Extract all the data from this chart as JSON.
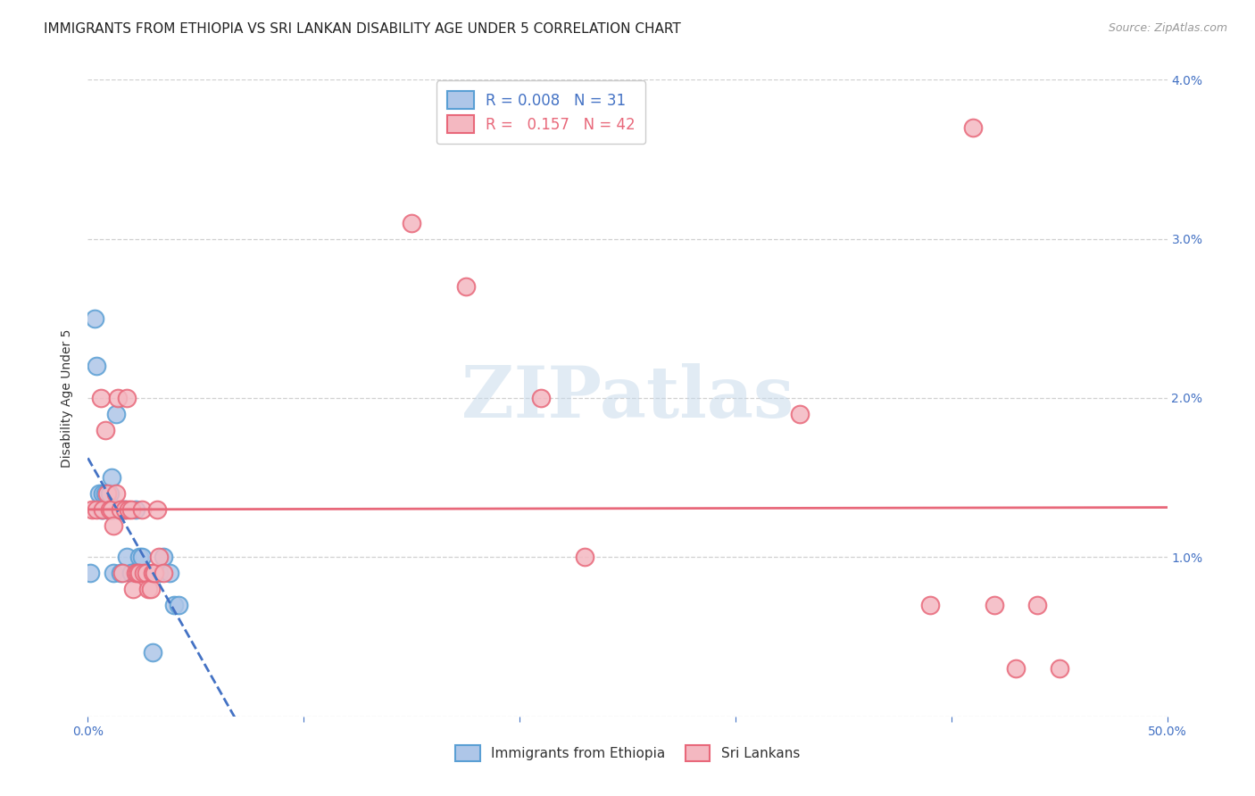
{
  "title": "IMMIGRANTS FROM ETHIOPIA VS SRI LANKAN DISABILITY AGE UNDER 5 CORRELATION CHART",
  "source": "Source: ZipAtlas.com",
  "ylabel": "Disability Age Under 5",
  "xlim": [
    0,
    0.5
  ],
  "ylim": [
    0,
    0.04
  ],
  "yticks": [
    0.0,
    0.01,
    0.02,
    0.03,
    0.04
  ],
  "yticklabels_right": [
    "",
    "1.0%",
    "2.0%",
    "3.0%",
    "4.0%"
  ],
  "ethiopia_color": "#aec6e8",
  "srilanka_color": "#f4b8c1",
  "ethiopia_edge": "#5a9fd4",
  "srilanka_edge": "#e8687a",
  "ethiopia_line_color": "#4472c4",
  "srilanka_line_color": "#e8687a",
  "legend_R_ethiopia": "0.008",
  "legend_N_ethiopia": "31",
  "legend_R_srilanka": "0.157",
  "legend_N_srilanka": "42",
  "background_color": "#ffffff",
  "grid_color": "#d0d0d0",
  "tick_color": "#4472c4",
  "title_fontsize": 11,
  "axis_label_fontsize": 10,
  "tick_fontsize": 10,
  "ethiopia_x": [
    0.001,
    0.003,
    0.004,
    0.005,
    0.006,
    0.007,
    0.007,
    0.008,
    0.009,
    0.01,
    0.01,
    0.011,
    0.012,
    0.012,
    0.013,
    0.014,
    0.015,
    0.016,
    0.017,
    0.018,
    0.02,
    0.022,
    0.024,
    0.025,
    0.028,
    0.03,
    0.033,
    0.035,
    0.038,
    0.04,
    0.042
  ],
  "ethiopia_y": [
    0.009,
    0.025,
    0.022,
    0.014,
    0.013,
    0.014,
    0.013,
    0.014,
    0.013,
    0.013,
    0.014,
    0.015,
    0.013,
    0.009,
    0.019,
    0.013,
    0.009,
    0.013,
    0.013,
    0.01,
    0.009,
    0.013,
    0.01,
    0.01,
    0.009,
    0.004,
    0.009,
    0.01,
    0.009,
    0.007,
    0.007
  ],
  "srilanka_x": [
    0.002,
    0.004,
    0.006,
    0.007,
    0.008,
    0.009,
    0.01,
    0.011,
    0.012,
    0.013,
    0.014,
    0.015,
    0.016,
    0.017,
    0.018,
    0.019,
    0.02,
    0.021,
    0.022,
    0.023,
    0.024,
    0.025,
    0.026,
    0.027,
    0.028,
    0.029,
    0.03,
    0.031,
    0.032,
    0.033,
    0.035,
    0.15,
    0.175,
    0.21,
    0.23,
    0.33,
    0.39,
    0.41,
    0.42,
    0.43,
    0.44,
    0.45
  ],
  "srilanka_y": [
    0.013,
    0.013,
    0.02,
    0.013,
    0.018,
    0.014,
    0.013,
    0.013,
    0.012,
    0.014,
    0.02,
    0.013,
    0.009,
    0.013,
    0.02,
    0.013,
    0.013,
    0.008,
    0.009,
    0.009,
    0.009,
    0.013,
    0.009,
    0.009,
    0.008,
    0.008,
    0.009,
    0.009,
    0.013,
    0.01,
    0.009,
    0.031,
    0.027,
    0.02,
    0.01,
    0.019,
    0.007,
    0.037,
    0.007,
    0.003,
    0.007,
    0.003
  ]
}
